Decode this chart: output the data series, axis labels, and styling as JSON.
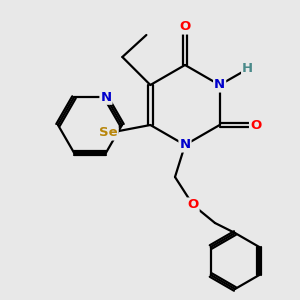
{
  "background_color": "#e8e8e8",
  "colors": {
    "C": "#000000",
    "N": "#0000cc",
    "O": "#ff0000",
    "Se": "#b8860b",
    "H": "#4a8a8a",
    "bond": "#000000"
  },
  "lw": 1.6
}
